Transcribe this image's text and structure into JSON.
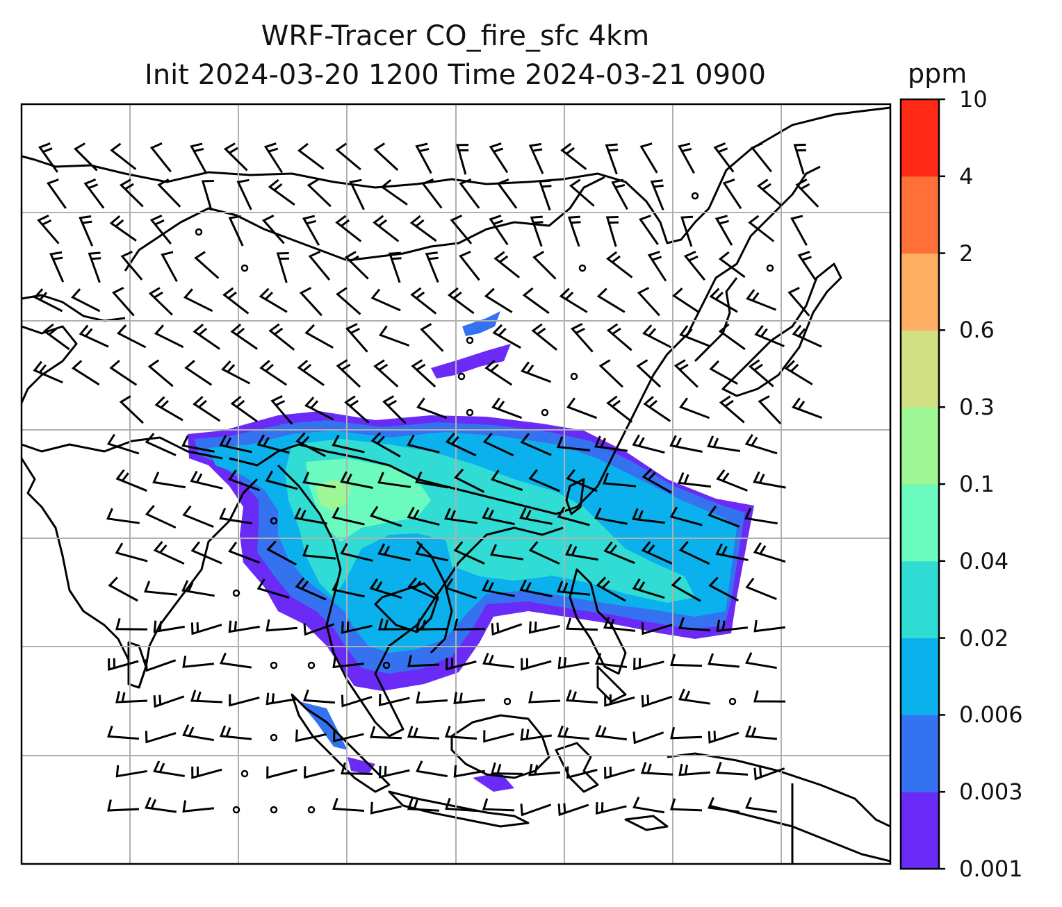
{
  "title": {
    "line1": "WRF-Tracer CO_fire_sfc 4km",
    "line2": "Init 2024-03-20 1200 Time 2024-03-21 0900"
  },
  "colorbar": {
    "unit": "ppm",
    "ticks": [
      "0.001",
      "0.003",
      "0.006",
      "0.02",
      "0.04",
      "0.1",
      "0.3",
      "0.6",
      "2",
      "4",
      "10"
    ],
    "colors": [
      "#6a2bf7",
      "#3572f0",
      "#0bb1ec",
      "#30dcd3",
      "#6bfbbf",
      "#9ef794",
      "#d2e084",
      "#feae62",
      "#ff7038",
      "#ff2916"
    ]
  },
  "map": {
    "gridlines": "on",
    "feature_colors": {
      "coastline": "#000000",
      "grid": "#b0b0b0",
      "barb": "#000000"
    }
  }
}
